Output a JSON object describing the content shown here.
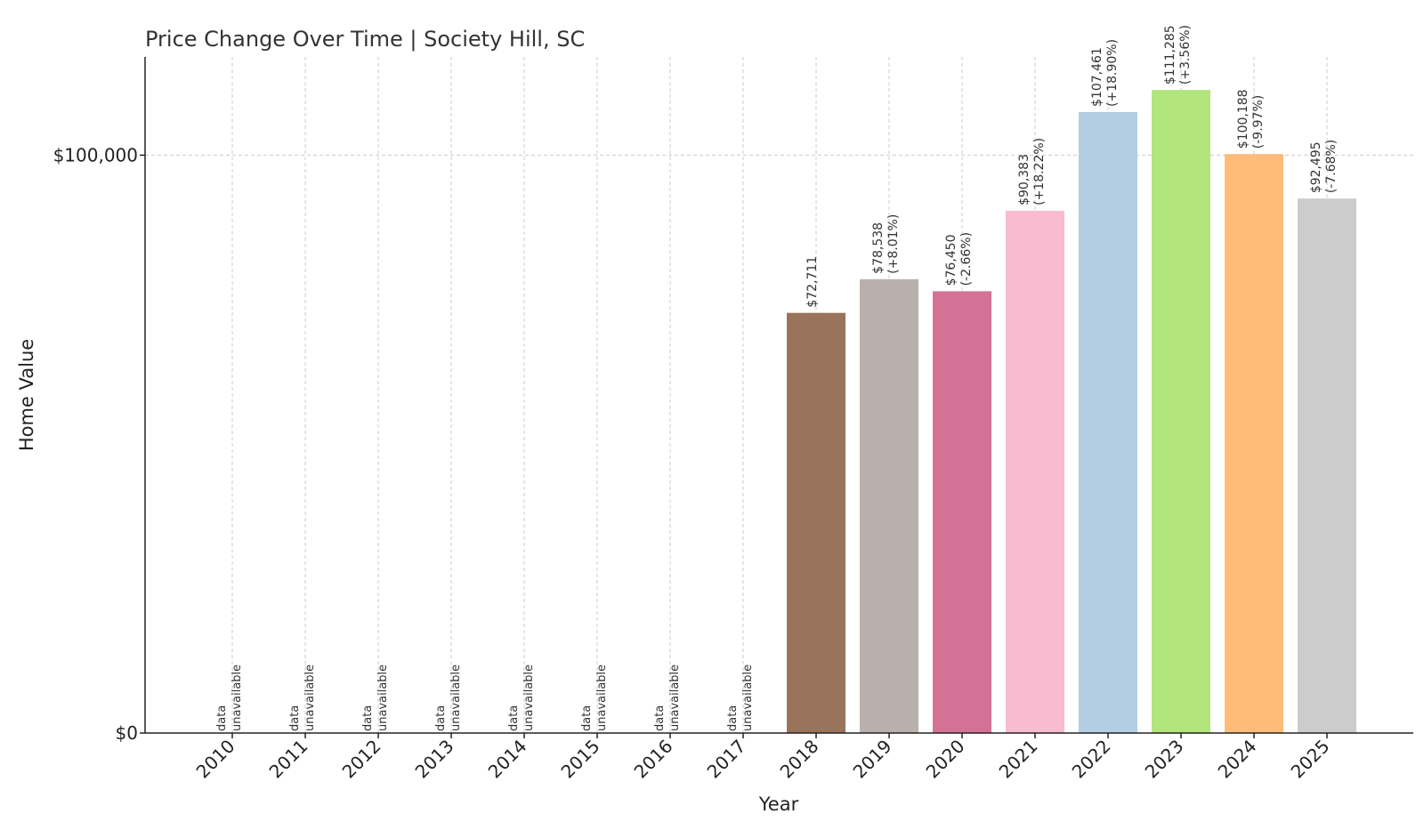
{
  "chart_data": {
    "type": "bar",
    "title": "Price Change Over Time | Society Hill, SC",
    "xlabel": "Year",
    "ylabel": "Home Value",
    "ylim": [
      0,
      117000
    ],
    "yticks": [
      {
        "value": 0,
        "label": "$0"
      },
      {
        "value": 100000,
        "label": "$100,000"
      }
    ],
    "grid": true,
    "categories": [
      "2010",
      "2011",
      "2012",
      "2013",
      "2014",
      "2015",
      "2016",
      "2017",
      "2018",
      "2019",
      "2020",
      "2021",
      "2022",
      "2023",
      "2024",
      "2025"
    ],
    "values": [
      null,
      null,
      null,
      null,
      null,
      null,
      null,
      null,
      72711,
      78538,
      76450,
      90383,
      107461,
      111285,
      100188,
      92495
    ],
    "value_labels": [
      "",
      "",
      "",
      "",
      "",
      "",
      "",
      "",
      "$72,711",
      "$78,538",
      "$76,450",
      "$90,383",
      "$107,461",
      "$111,285",
      "$100,188",
      "$92,495"
    ],
    "change_labels": [
      "",
      "",
      "",
      "",
      "",
      "",
      "",
      "",
      "",
      "(+8.01%)",
      "(-2.66%)",
      "(+18.22%)",
      "(+18.90%)",
      "(+3.56%)",
      "(-9.97%)",
      "(-7.68%)"
    ],
    "missing_label": [
      "data",
      "unavailable"
    ],
    "colors": [
      "#9a735c",
      "#9a735c",
      "#9a735c",
      "#9a735c",
      "#9a735c",
      "#9a735c",
      "#9a735c",
      "#9a735c",
      "#9a735c",
      "#bab0ab",
      "#d37295",
      "#f8bbd0",
      "#b3cde3",
      "#b2e57c",
      "#ffbb78",
      "#cccccc"
    ]
  }
}
